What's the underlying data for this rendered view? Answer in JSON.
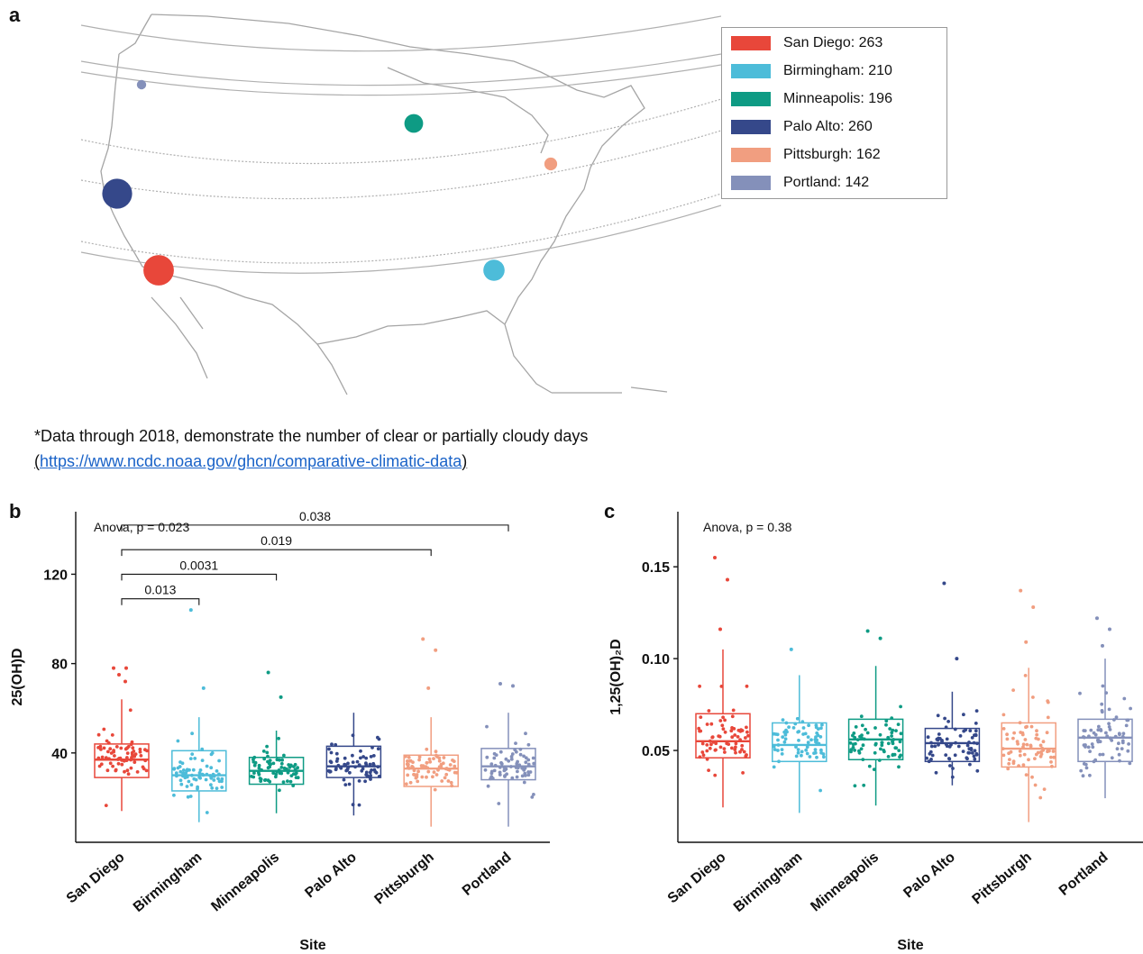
{
  "panels": {
    "a": "a",
    "b": "b",
    "c": "c"
  },
  "legend": [
    {
      "label": "San Diego: 263",
      "color": "#e8473a"
    },
    {
      "label": "Birmingham: 210",
      "color": "#4dbcd9"
    },
    {
      "label": "Minneapolis: 196",
      "color": "#0e9b84"
    },
    {
      "label": "Palo Alto: 260",
      "color": "#35488a"
    },
    {
      "label": "Pittsburgh: 162",
      "color": "#f19e80"
    },
    {
      "label": "Portland: 142",
      "color": "#8490ba"
    }
  ],
  "footnote": {
    "line1": "*Data through 2018, demonstrate the number of clear or partially cloudy days",
    "paren_open": "(",
    "link": "https://www.ncdc.noaa.gov/ghcn/comparative-climatic-data",
    "paren_close": ")"
  },
  "chart_data": [
    {
      "type": "box",
      "panel": "b",
      "categories": [
        "San Diego",
        "Birmingham",
        "Minneapolis",
        "Palo Alto",
        "Pittsburgh",
        "Portland"
      ],
      "colors": [
        "#e8473a",
        "#4dbcd9",
        "#0e9b84",
        "#35488a",
        "#f19e80",
        "#8490ba"
      ],
      "xlabel": "Site",
      "ylabel": "25(OH)D",
      "ylim": [
        0,
        148
      ],
      "yticks": [
        "40",
        "80",
        "120"
      ],
      "annotation": "Anova, p = 0.023",
      "boxes": [
        {
          "q1": 29,
          "median": 37,
          "q3": 44,
          "wlo": 14,
          "whi": 64
        },
        {
          "q1": 23,
          "median": 30,
          "q3": 41,
          "wlo": 9,
          "whi": 56
        },
        {
          "q1": 26,
          "median": 32,
          "q3": 38,
          "wlo": 13,
          "whi": 50
        },
        {
          "q1": 29,
          "median": 34,
          "q3": 43,
          "wlo": 12,
          "whi": 58
        },
        {
          "q1": 25,
          "median": 33,
          "q3": 39,
          "wlo": 7,
          "whi": 56
        },
        {
          "q1": 28,
          "median": 34,
          "q3": 42,
          "wlo": 7,
          "whi": 58
        }
      ],
      "outliers": [
        [
          {
            "y": 78
          },
          {
            "y": 78
          },
          {
            "y": 75
          },
          {
            "y": 72
          }
        ],
        [
          {
            "y": 104
          },
          {
            "y": 69
          }
        ],
        [
          {
            "y": 76
          },
          {
            "y": 65
          }
        ],
        [],
        [
          {
            "y": 91
          },
          {
            "y": 86
          },
          {
            "y": 69
          }
        ],
        [
          {
            "y": 71
          },
          {
            "y": 70
          }
        ]
      ],
      "brackets": [
        {
          "from": 0,
          "to": 5,
          "label": "0.038",
          "y": 142
        },
        {
          "from": 0,
          "to": 4,
          "label": "0.019",
          "y": 131
        },
        {
          "from": 0,
          "to": 2,
          "label": "0.0031",
          "y": 120
        },
        {
          "from": 0,
          "to": 1,
          "label": "0.013",
          "y": 109
        }
      ]
    },
    {
      "type": "box",
      "panel": "c",
      "categories": [
        "San Diego",
        "Birmingham",
        "Minneapolis",
        "Palo Alto",
        "Pittsburgh",
        "Portland"
      ],
      "colors": [
        "#e8473a",
        "#4dbcd9",
        "#0e9b84",
        "#35488a",
        "#f19e80",
        "#8490ba"
      ],
      "xlabel": "Site",
      "ylabel": "1,25(OH)₂D",
      "ylim": [
        0,
        0.18
      ],
      "yticks": [
        "0.05",
        "0.10",
        "0.15"
      ],
      "annotation": "Anova, p = 0.38",
      "boxes": [
        {
          "q1": 0.046,
          "median": 0.055,
          "q3": 0.07,
          "wlo": 0.019,
          "whi": 0.105
        },
        {
          "q1": 0.044,
          "median": 0.053,
          "q3": 0.065,
          "wlo": 0.016,
          "whi": 0.091
        },
        {
          "q1": 0.045,
          "median": 0.056,
          "q3": 0.067,
          "wlo": 0.02,
          "whi": 0.096
        },
        {
          "q1": 0.044,
          "median": 0.054,
          "q3": 0.062,
          "wlo": 0.031,
          "whi": 0.082
        },
        {
          "q1": 0.041,
          "median": 0.051,
          "q3": 0.065,
          "wlo": 0.011,
          "whi": 0.095
        },
        {
          "q1": 0.044,
          "median": 0.057,
          "q3": 0.067,
          "wlo": 0.024,
          "whi": 0.1
        }
      ],
      "outliers": [
        [
          {
            "y": 0.155
          },
          {
            "y": 0.143
          },
          {
            "y": 0.116
          }
        ],
        [
          {
            "y": 0.105
          }
        ],
        [
          {
            "y": 0.115
          },
          {
            "y": 0.111
          }
        ],
        [
          {
            "y": 0.141
          },
          {
            "y": 0.1
          }
        ],
        [
          {
            "y": 0.137
          },
          {
            "y": 0.128
          },
          {
            "y": 0.109
          }
        ],
        [
          {
            "y": 0.122
          },
          {
            "y": 0.116
          },
          {
            "y": 0.107
          }
        ]
      ],
      "brackets": []
    }
  ],
  "map_points": [
    {
      "site": "Portland",
      "color": "#8490ba",
      "size": 142
    },
    {
      "site": "Minneapolis",
      "color": "#0e9b84",
      "size": 196
    },
    {
      "site": "Pittsburgh",
      "color": "#f19e80",
      "size": 162
    },
    {
      "site": "Palo Alto",
      "color": "#35488a",
      "size": 260
    },
    {
      "site": "San Diego",
      "color": "#e8473a",
      "size": 263
    },
    {
      "site": "Birmingham",
      "color": "#4dbcd9",
      "size": 210
    }
  ]
}
